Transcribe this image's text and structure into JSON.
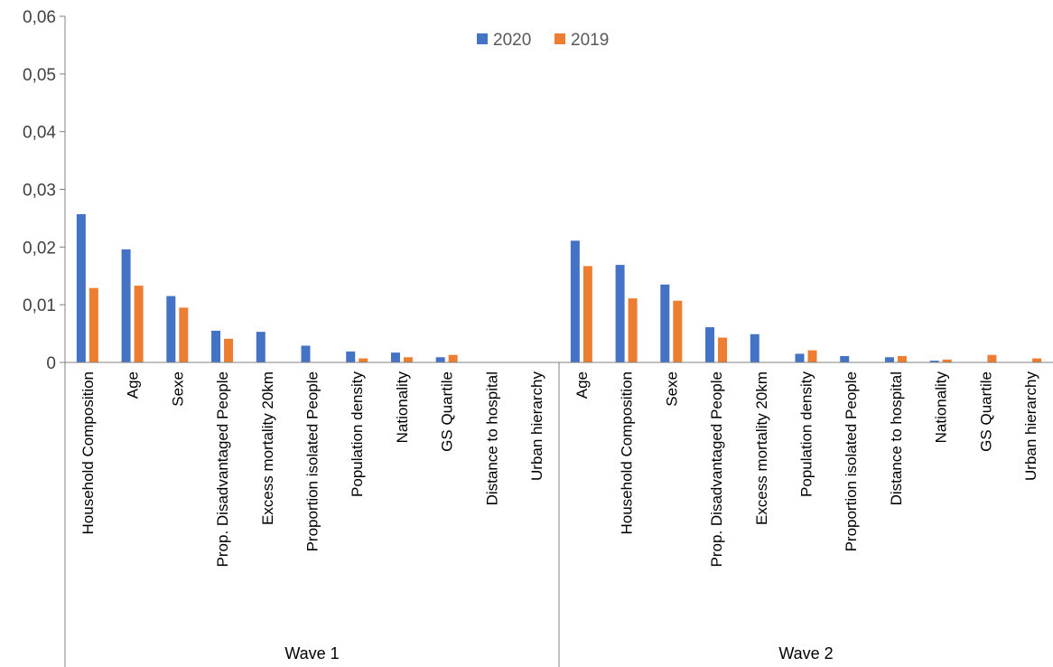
{
  "chart_data": {
    "type": "bar",
    "title": "",
    "xlabel": "",
    "ylabel": "",
    "ylim": [
      0,
      0.06
    ],
    "y_ticks": [
      "0",
      "0,01",
      "0,02",
      "0,03",
      "0,04",
      "0,05",
      "0,06"
    ],
    "grid": false,
    "legend_position": "top-center",
    "series_colors": [
      "#4472C4",
      "#ED7D31"
    ],
    "groups": [
      {
        "name": "Wave 1",
        "categories": [
          "Household Composition",
          "Age",
          "Sexe",
          "Prop. Disadvantaged People",
          "Excess mortality 20km",
          "Proportion isolated People",
          "Population density",
          "Nationality",
          "GS Quartile",
          "Distance to hospital",
          "Urban hierarchy"
        ],
        "series": [
          {
            "name": "2020",
            "values": [
              0.0257,
              0.0196,
              0.0115,
              0.0055,
              0.0053,
              0.0029,
              0.0019,
              0.0017,
              0.0009,
              0,
              0
            ]
          },
          {
            "name": "2019",
            "values": [
              0.0129,
              0.0133,
              0.0095,
              0.0041,
              0,
              0,
              0.0007,
              0.0009,
              0.0013,
              0,
              0
            ]
          }
        ]
      },
      {
        "name": "Wave 2",
        "categories": [
          "Age",
          "Household Composition",
          "Sexe",
          "Prop. Disadvantaged People",
          "Excess mortality 20km",
          "Population density",
          "Proportion isolated People",
          "Distance to hospital",
          "Nationality",
          "GS Quartile",
          "Urban hierarchy"
        ],
        "series": [
          {
            "name": "2020",
            "values": [
              0.0211,
              0.0169,
              0.0135,
              0.0061,
              0.0049,
              0.0015,
              0.0011,
              0.0009,
              0.0003,
              0,
              0
            ]
          },
          {
            "name": "2019",
            "values": [
              0.0167,
              0.0111,
              0.0107,
              0.0043,
              0,
              0.0021,
              0,
              0.0011,
              0.0005,
              0.0013,
              0.0007
            ]
          }
        ]
      }
    ]
  }
}
